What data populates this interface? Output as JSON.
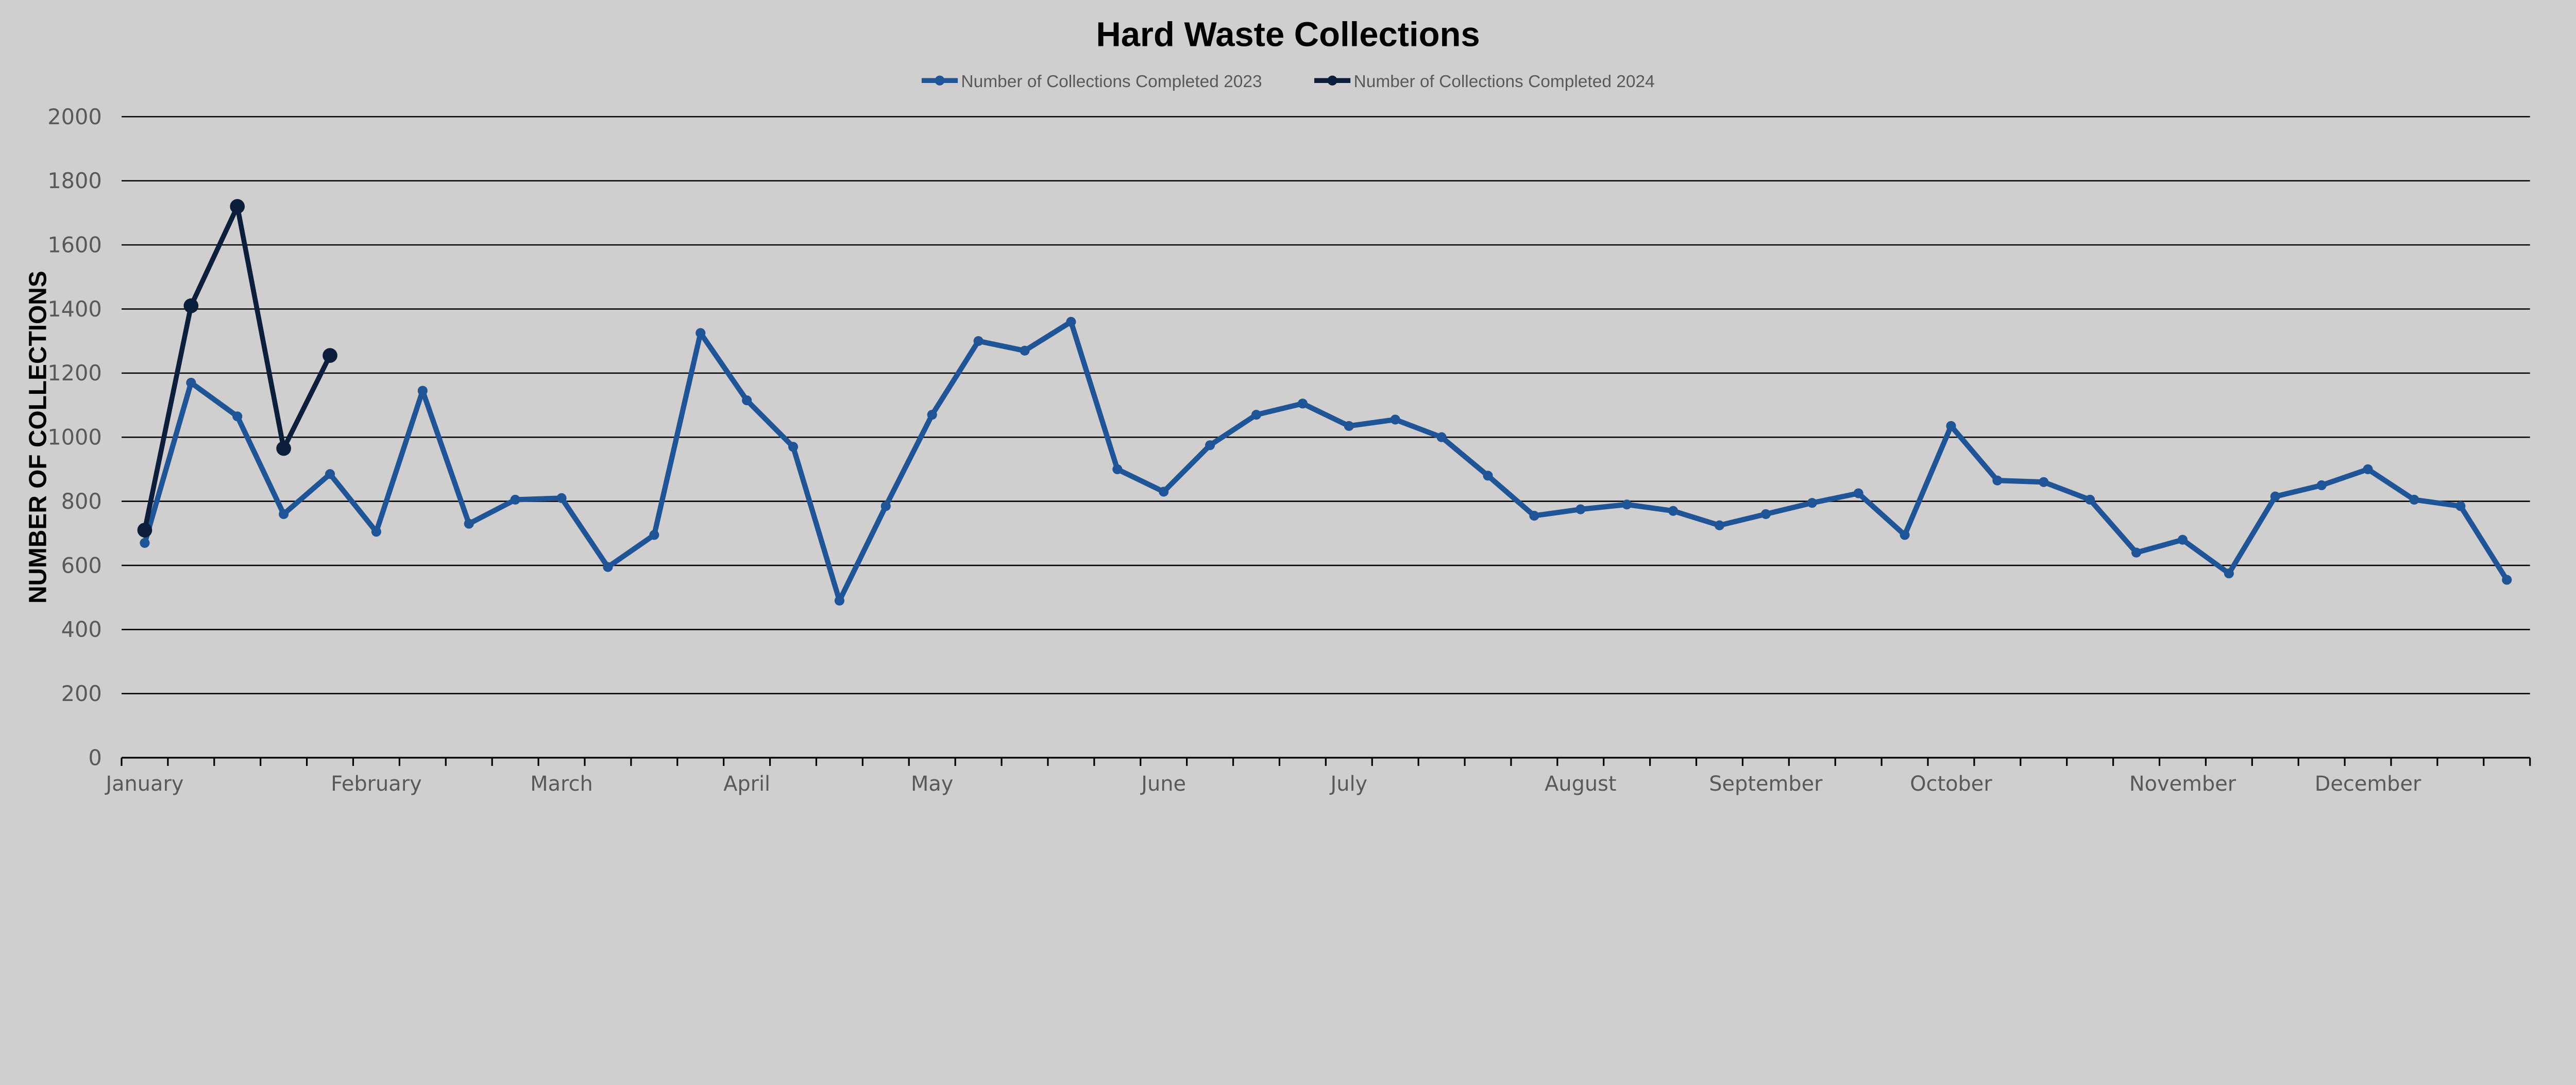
{
  "chart_data": {
    "type": "line",
    "title": "Hard Waste Collections",
    "xlabel": "",
    "ylabel": "NUMBER OF COLLECTIONS",
    "ylim": [
      0,
      2000
    ],
    "yticks": [
      0,
      200,
      400,
      600,
      800,
      1000,
      1200,
      1400,
      1600,
      1800,
      2000
    ],
    "grid": true,
    "legend_position": "top",
    "x_count": 52,
    "month_labels": [
      {
        "label": "January",
        "index": 0
      },
      {
        "label": "February",
        "index": 5
      },
      {
        "label": "March",
        "index": 9
      },
      {
        "label": "April",
        "index": 13
      },
      {
        "label": "May",
        "index": 17
      },
      {
        "label": "June",
        "index": 22
      },
      {
        "label": "July",
        "index": 26
      },
      {
        "label": "August",
        "index": 31
      },
      {
        "label": "September",
        "index": 35
      },
      {
        "label": "October",
        "index": 39
      },
      {
        "label": "November",
        "index": 44
      },
      {
        "label": "December",
        "index": 48
      }
    ],
    "series": [
      {
        "name": "Number of Collections Completed 2023",
        "color": "#1f5597",
        "values": [
          670,
          1170,
          1065,
          760,
          885,
          705,
          1145,
          730,
          805,
          810,
          595,
          695,
          1325,
          1115,
          970,
          490,
          785,
          1070,
          1300,
          1270,
          1360,
          900,
          830,
          975,
          1070,
          1105,
          1035,
          1055,
          1000,
          880,
          755,
          775,
          790,
          770,
          725,
          760,
          795,
          825,
          695,
          1035,
          865,
          860,
          805,
          640,
          680,
          575,
          815,
          850,
          900,
          805,
          785,
          555
        ]
      },
      {
        "name": "Number of Collections Completed 2024",
        "color": "#0b1f3c",
        "values": [
          710,
          1410,
          1720,
          965,
          1255
        ]
      }
    ]
  }
}
